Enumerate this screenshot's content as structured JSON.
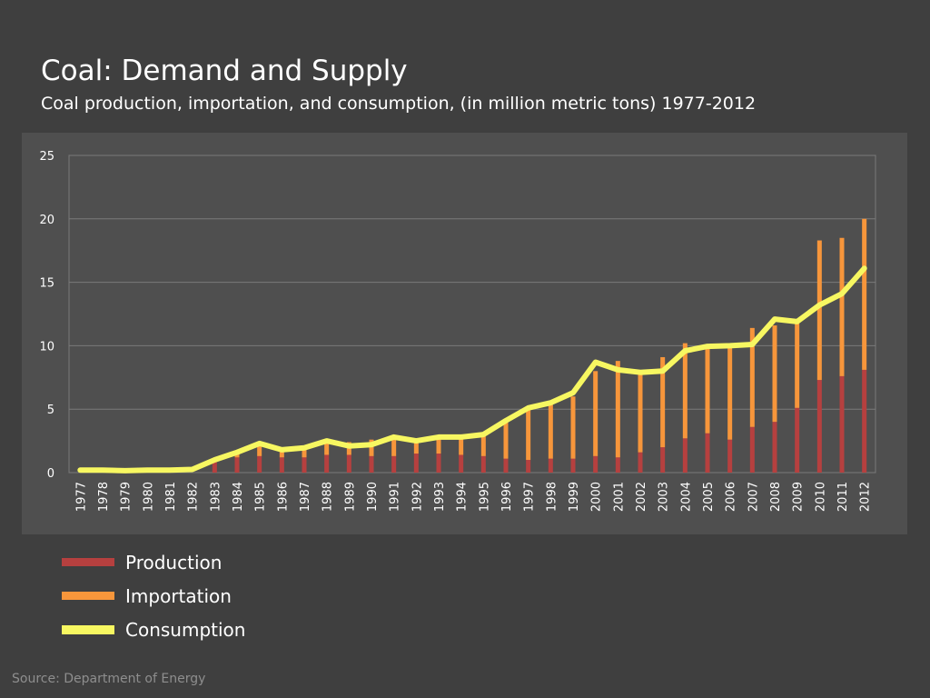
{
  "header": {
    "title": "Coal: Demand and Supply",
    "subtitle": "Coal production, importation, and consumption, (in million metric tons) 1977-2012"
  },
  "colors": {
    "background": "#3f3f3f",
    "panel": "#4f4f4f",
    "production": "#b6403f",
    "importation": "#f7963b",
    "consumption": "#f7f761",
    "grid": "#7a7a7a",
    "axis_text": "#ffffff"
  },
  "legend": [
    {
      "label": "Production",
      "color": "#b6403f"
    },
    {
      "label": "Importation",
      "color": "#f7963b"
    },
    {
      "label": "Consumption",
      "color": "#f7f761"
    }
  ],
  "source": "Source: Department of Energy",
  "chart_data": {
    "type": "bar",
    "stacked": true,
    "title": "Coal: Demand and Supply",
    "subtitle": "Coal production, importation, and consumption, (in million metric tons) 1977-2012",
    "xlabel": "",
    "ylabel": "",
    "ylim": [
      0,
      25
    ],
    "yticks": [
      0,
      5,
      10,
      15,
      20,
      25
    ],
    "grid": true,
    "legend_position": "bottom-left",
    "categories": [
      "1977",
      "1978",
      "1979",
      "1980",
      "1981",
      "1982",
      "1983",
      "1984",
      "1985",
      "1986",
      "1987",
      "1988",
      "1989",
      "1990",
      "1991",
      "1992",
      "1993",
      "1994",
      "1995",
      "1996",
      "1997",
      "1998",
      "1999",
      "2000",
      "2001",
      "2002",
      "2003",
      "2004",
      "2005",
      "2006",
      "2007",
      "2008",
      "2009",
      "2010",
      "2011",
      "2012"
    ],
    "series": [
      {
        "name": "Production",
        "kind": "bar",
        "values": [
          0.0,
          0.0,
          0.0,
          0.0,
          0.0,
          0.0,
          0.9,
          1.2,
          1.3,
          1.2,
          1.2,
          1.4,
          1.4,
          1.3,
          1.3,
          1.5,
          1.5,
          1.4,
          1.3,
          1.1,
          1.0,
          1.1,
          1.1,
          1.3,
          1.2,
          1.6,
          2.0,
          2.7,
          3.1,
          2.6,
          3.6,
          4.0,
          5.1,
          7.3,
          7.6,
          8.1
        ]
      },
      {
        "name": "Importation",
        "kind": "bar",
        "values": [
          0.0,
          0.0,
          0.0,
          0.0,
          0.0,
          0.0,
          0.0,
          0.5,
          1.0,
          0.6,
          0.7,
          0.9,
          1.0,
          1.3,
          1.4,
          1.0,
          1.3,
          1.4,
          1.7,
          3.0,
          4.0,
          4.4,
          4.9,
          6.7,
          7.6,
          6.3,
          7.1,
          7.5,
          6.8,
          7.4,
          7.8,
          7.6,
          6.9,
          11.0,
          10.9,
          11.9
        ]
      },
      {
        "name": "Consumption",
        "kind": "line",
        "values": [
          0.2,
          0.2,
          0.15,
          0.2,
          0.2,
          0.25,
          1.0,
          1.6,
          2.3,
          1.8,
          1.95,
          2.5,
          2.1,
          2.2,
          2.8,
          2.5,
          2.8,
          2.8,
          3.0,
          4.1,
          5.1,
          5.5,
          6.3,
          8.7,
          8.1,
          7.9,
          8.0,
          9.6,
          9.95,
          10.0,
          10.1,
          12.1,
          11.9,
          13.2,
          14.1,
          16.1
        ]
      }
    ]
  }
}
